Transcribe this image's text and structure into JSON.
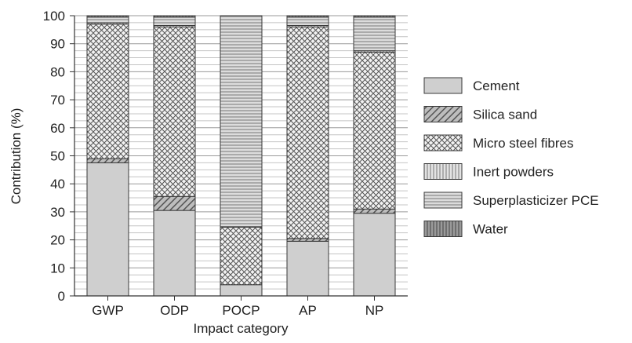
{
  "chart_data": {
    "type": "bar",
    "stacked": true,
    "xlabel": "Impact category",
    "ylabel": "Contribution (%)",
    "ylim": [
      0,
      100
    ],
    "yticks": [
      0,
      10,
      20,
      30,
      40,
      50,
      60,
      70,
      80,
      90,
      100
    ],
    "grid": true,
    "legend_position": "right",
    "categories": [
      "GWP",
      "ODP",
      "POCP",
      "AP",
      "NP"
    ],
    "series": [
      {
        "name": "Cement",
        "pattern": "solid",
        "values": [
          47.5,
          30.5,
          4,
          19.5,
          29.5
        ]
      },
      {
        "name": "Silica sand",
        "pattern": "diagonal",
        "values": [
          1.5,
          5,
          0,
          1,
          1.5
        ]
      },
      {
        "name": "Micro steel fibres",
        "pattern": "crosshatch",
        "values": [
          48,
          60.5,
          20.5,
          75.5,
          56
        ]
      },
      {
        "name": "Inert powders",
        "pattern": "vertical",
        "values": [
          0.5,
          0.5,
          0.2,
          0.5,
          0.5
        ]
      },
      {
        "name": "Superplasticizer PCE",
        "pattern": "horizontal",
        "values": [
          2,
          3,
          75.3,
          3,
          12
        ]
      },
      {
        "name": "Water",
        "pattern": "grid",
        "values": [
          0.5,
          0.5,
          0,
          0.5,
          0.5
        ]
      }
    ],
    "colors": {
      "fill": "#cfcfcf",
      "stroke": "#3a3a3a"
    }
  }
}
